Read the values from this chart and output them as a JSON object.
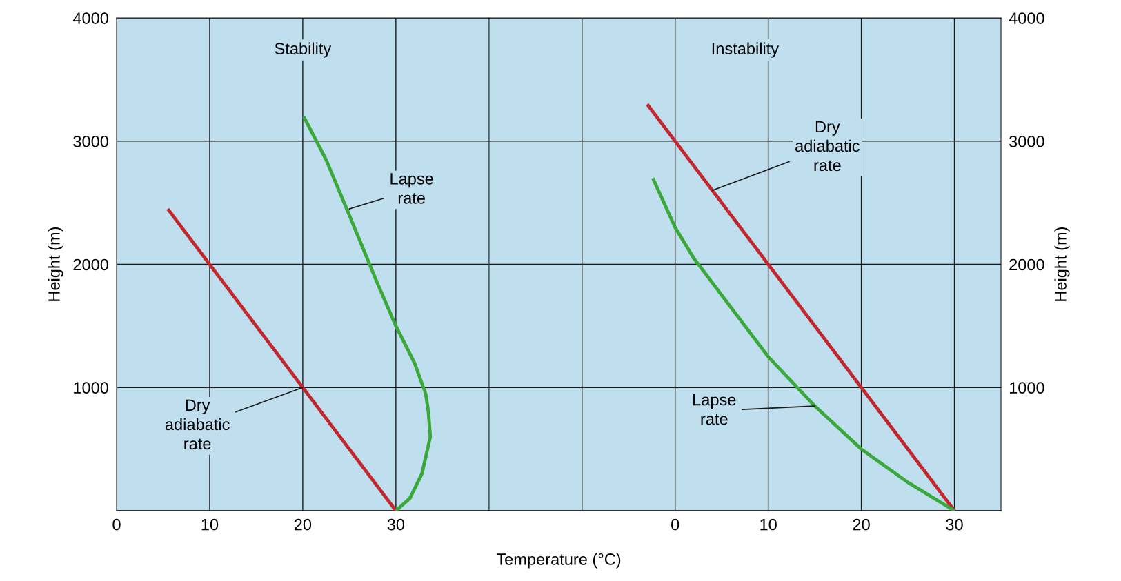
{
  "chart_data": [
    {
      "type": "line",
      "title": "Stability",
      "ylabel": "Height (m)",
      "xlabel": "Temperature (°C)",
      "xlim": [
        0,
        40
      ],
      "xticks": [
        0,
        10,
        20,
        30,
        {
          "value": 40,
          "label": null
        }
      ],
      "ylim": [
        0,
        4000
      ],
      "yticks": [
        {
          "value": 0,
          "label": null
        },
        1000,
        2000,
        3000,
        4000
      ],
      "grid": true,
      "series": [
        {
          "color": "#c1272d",
          "x": [
            30,
            5.5
          ],
          "values": [
            0,
            2450
          ]
        },
        {
          "color": "#3aa83a",
          "x": [
            30,
            31.5,
            32.8,
            33.7,
            33.5,
            33.2,
            32,
            30,
            28,
            25,
            22.5,
            20.1
          ],
          "values": [
            0,
            100,
            300,
            600,
            800,
            950,
            1200,
            1500,
            1850,
            2400,
            2850,
            3200
          ]
        }
      ],
      "annotations": [
        {
          "text": "Lapse\nrate",
          "x": 25,
          "y": 2450
        },
        {
          "text": "Dry\nadiabatic\nrate",
          "x": 20,
          "y": 1000
        }
      ]
    },
    {
      "type": "line",
      "title": "Instability",
      "ylabel": "Height (m)",
      "xlim": [
        -20,
        35
      ],
      "xticks": [
        {
          "value": -20,
          "label": null
        },
        {
          "value": -10,
          "label": null
        },
        0,
        10,
        20,
        30
      ],
      "ylim": [
        0,
        4000
      ],
      "yticks": [
        {
          "value": 0,
          "label": null
        },
        1000,
        2000,
        3000,
        4000
      ],
      "grid": true,
      "series": [
        {
          "color": "#c1272d",
          "x": [
            30,
            -3
          ],
          "values": [
            0,
            3300
          ]
        },
        {
          "color": "#3aa83a",
          "x": [
            30,
            25,
            20,
            15,
            10,
            5,
            2,
            0,
            -1.5,
            -2.4
          ],
          "values": [
            0,
            230,
            500,
            850,
            1250,
            1750,
            2050,
            2300,
            2550,
            2700
          ]
        }
      ],
      "annotations": [
        {
          "text": "Dry\nadiabatic\nrate",
          "x": 4,
          "y": 2600
        },
        {
          "text": "Lapse\nrate",
          "x": 15,
          "y": 850
        }
      ]
    }
  ]
}
